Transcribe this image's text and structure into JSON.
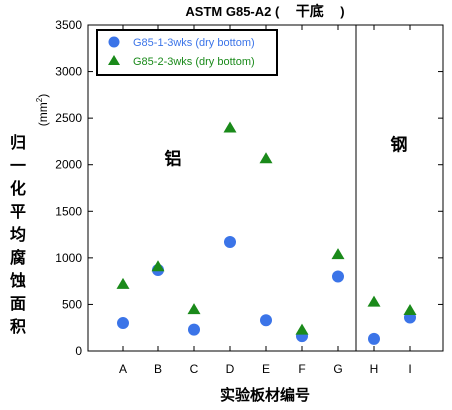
{
  "chart_data": {
    "type": "scatter",
    "title_prefix": "ASTM G85-A2 (",
    "title_cjk": "干底",
    "title_suffix": ")",
    "ylabel": "归一化平均腐蚀面积",
    "ylabel_unit_base": "(mm",
    "ylabel_unit_sup": "2",
    "ylabel_unit_close": ")",
    "xlabel": "实验板材编号",
    "categories": [
      "A",
      "B",
      "C",
      "D",
      "E",
      "F",
      "G",
      "H",
      "I"
    ],
    "ylim": [
      0,
      3500
    ],
    "yticks": [
      0,
      500,
      1000,
      1500,
      2000,
      2500,
      3000,
      3500
    ],
    "ytick_labels": [
      "0",
      "500",
      "1000",
      "1500",
      "2000",
      "2500",
      "3000",
      "3500"
    ],
    "grid": false,
    "legend_position": "top-left",
    "series": [
      {
        "name": "G85-1-3wks (dry bottom)",
        "marker": "circle",
        "color": "#3B74E8",
        "values": [
          300,
          870,
          230,
          1170,
          330,
          160,
          800,
          130,
          360
        ]
      },
      {
        "name": "G85-2-3wks (dry bottom)",
        "marker": "triangle",
        "color": "#1A8A1A",
        "values": [
          720,
          910,
          450,
          2400,
          2070,
          230,
          1040,
          530,
          440
        ]
      }
    ],
    "region_labels": [
      {
        "text": "铝",
        "at_category": "B",
        "at_value": 2000
      },
      {
        "text": "钢",
        "at_category": "H",
        "at_value": 2150
      }
    ],
    "divider_between": [
      "G",
      "H"
    ]
  }
}
